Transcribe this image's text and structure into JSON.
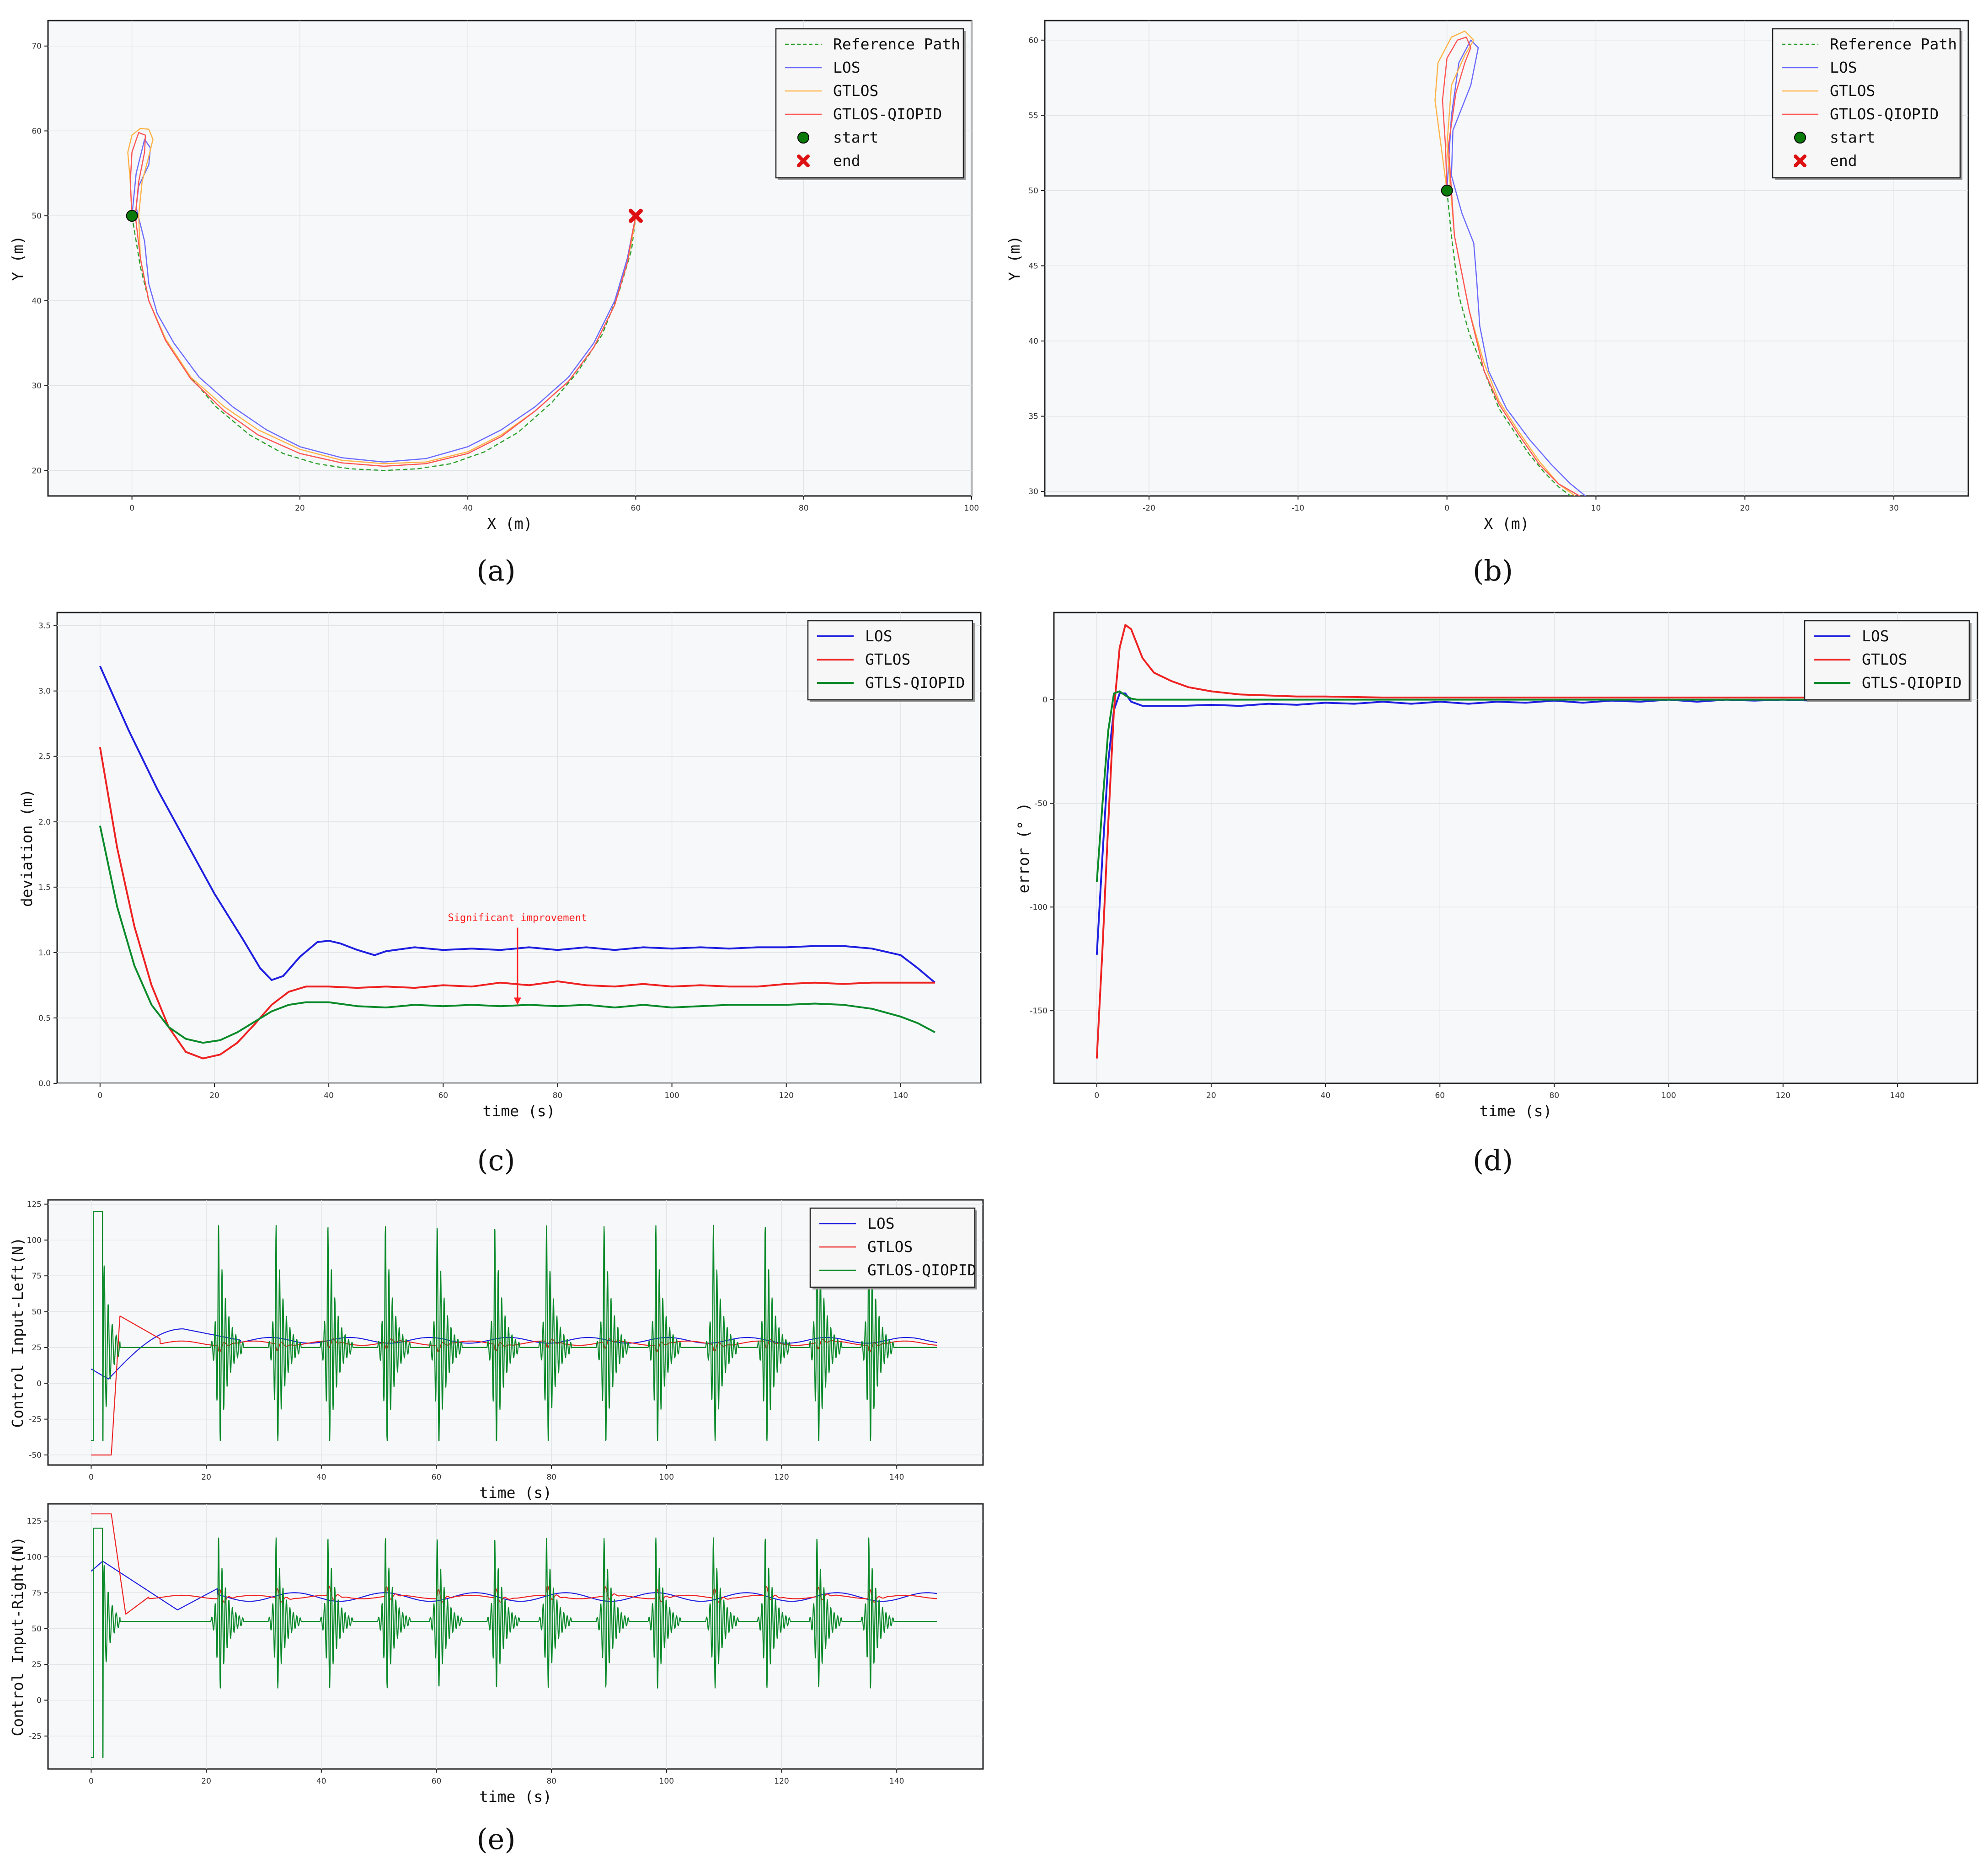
{
  "colors": {
    "reference": "#2ca02c",
    "los_a": "#6b6bff",
    "gtlos_a": "#ffb347",
    "qiopid_a": "#ff5555",
    "los": "#1f1fe0",
    "gtlos": "#ee2222",
    "qiopid": "#0a8a2a",
    "start": "#0a7a0a",
    "end": "#dd1111"
  },
  "chart_data": [
    {
      "id": "a",
      "caption": "(a)",
      "type": "line",
      "xlabel": "X (m)",
      "ylabel": "Y (m)",
      "xlim": [
        -10,
        100
      ],
      "ylim": [
        17,
        73
      ],
      "xticks": [
        0,
        20,
        40,
        60,
        80,
        100
      ],
      "yticks": [
        20,
        30,
        40,
        50,
        60,
        70
      ],
      "grid": true,
      "legend_position": "top-right",
      "legend": [
        "Reference Path",
        "LOS",
        "GTLOS",
        "GTLOS-QIOPID",
        "start",
        "end"
      ],
      "series": [
        {
          "name": "Reference Path",
          "style": "dashed",
          "x": [
            0,
            1,
            2,
            4,
            7,
            10,
            14,
            18,
            22,
            26,
            30,
            34,
            38,
            42,
            46,
            50,
            53,
            56,
            58,
            59.5,
            60
          ],
          "y": [
            50,
            44,
            40,
            35.5,
            31,
            27.5,
            24.2,
            22,
            20.8,
            20.2,
            20,
            20.2,
            20.8,
            22.2,
            24.5,
            28,
            31.5,
            36,
            41,
            46,
            50
          ]
        },
        {
          "name": "LOS",
          "x": [
            0,
            0.5,
            1.5,
            2.2,
            2,
            0.8,
            0.5,
            1.5,
            2,
            3,
            5,
            8,
            12,
            16,
            20,
            25,
            30,
            35,
            40,
            44,
            48,
            52,
            55,
            57.5,
            59,
            59.6,
            60
          ],
          "y": [
            50,
            55,
            59,
            58,
            56,
            53.5,
            51,
            47,
            42,
            38.5,
            35,
            31,
            27.5,
            24.8,
            22.8,
            21.5,
            21,
            21.4,
            22.8,
            24.8,
            27.5,
            31,
            35,
            40,
            45,
            48,
            50
          ]
        },
        {
          "name": "GTLOS",
          "x": [
            0,
            -0.2,
            -0.5,
            0,
            1,
            2,
            2.5,
            2,
            1.2,
            0.8,
            1,
            2,
            4,
            7,
            11,
            15,
            20,
            25,
            30,
            35,
            40,
            44,
            48,
            52,
            55,
            57.5,
            59,
            59.7,
            60
          ],
          "y": [
            50,
            54,
            57.5,
            59.5,
            60.3,
            60.2,
            59,
            57,
            54,
            50,
            45,
            40,
            35.5,
            31,
            27.5,
            24.8,
            22.5,
            21.2,
            20.8,
            21,
            22.2,
            24.2,
            27,
            30.5,
            34.5,
            39.5,
            44.5,
            48,
            50
          ]
        },
        {
          "name": "GTLOS-QIOPID",
          "x": [
            0,
            -0.2,
            0,
            0.8,
            1.6,
            1.5,
            0.8,
            0.4,
            1,
            2,
            4,
            7,
            11,
            15,
            20,
            25,
            30,
            35,
            40,
            44,
            48,
            52,
            55,
            57.5,
            59,
            59.6,
            60
          ],
          "y": [
            50,
            54,
            57.5,
            59.8,
            59.5,
            57.5,
            54,
            50,
            45,
            40,
            35.3,
            30.8,
            27,
            24.2,
            22,
            20.9,
            20.5,
            20.8,
            22,
            24,
            27,
            30.5,
            34.5,
            39.5,
            44.5,
            48,
            50
          ]
        },
        {
          "name": "start",
          "type": "scatter",
          "x": [
            0
          ],
          "y": [
            50
          ]
        },
        {
          "name": "end",
          "type": "scatter",
          "x": [
            60
          ],
          "y": [
            50
          ]
        }
      ]
    },
    {
      "id": "b",
      "caption": "(b)",
      "type": "line",
      "xlabel": "X (m)",
      "ylabel": "Y (m)",
      "xlim": [
        -27,
        35
      ],
      "ylim": [
        29.7,
        61.3
      ],
      "xticks": [
        -20,
        -10,
        0,
        10,
        20,
        30
      ],
      "yticks": [
        30,
        35,
        40,
        45,
        50,
        55,
        60
      ],
      "grid": true,
      "legend_position": "top-right",
      "legend": [
        "Reference Path",
        "LOS",
        "GTLOS",
        "GTLOS-QIOPID",
        "start",
        "end"
      ],
      "series": [
        {
          "name": "Reference Path",
          "style": "dashed",
          "x": [
            0,
            0.3,
            0.8,
            1.5,
            2.5,
            3.5,
            4.5,
            5.5,
            6.5,
            7.5,
            8.3
          ],
          "y": [
            50,
            47,
            43,
            40.5,
            38,
            35.5,
            34,
            32.5,
            31.3,
            30.3,
            29.7
          ]
        },
        {
          "name": "LOS",
          "x": [
            0,
            0.3,
            0.8,
            1.6,
            2.1,
            1.6,
            0.4,
            0.3,
            1,
            1.8,
            2,
            2.2,
            2.8,
            4,
            5.5,
            7,
            8.3,
            9.3
          ],
          "y": [
            50,
            55,
            58.5,
            60,
            59.5,
            57,
            54,
            51,
            48.5,
            46.5,
            44,
            41,
            38,
            35.5,
            33.5,
            31.8,
            30.5,
            29.7
          ]
        },
        {
          "name": "GTLOS",
          "x": [
            0,
            -0.4,
            -0.8,
            -0.6,
            0.3,
            1.2,
            1.8,
            1.2,
            0.3,
            0,
            0.5,
            1.5,
            2.5,
            3.5,
            4.8,
            6.2,
            7.5,
            8.6
          ],
          "y": [
            50,
            53,
            56,
            58.5,
            60.2,
            60.6,
            60,
            59,
            57,
            53,
            47,
            42,
            38.5,
            36,
            34,
            32,
            30.5,
            29.7
          ]
        },
        {
          "name": "GTLOS-QIOPID",
          "x": [
            0,
            -0.1,
            -0.3,
            0,
            0.7,
            1.3,
            1.6,
            1.2,
            0.6,
            0.1,
            0.5,
            1.5,
            2.5,
            3.5,
            4.8,
            6.2,
            7.5,
            8.9
          ],
          "y": [
            50,
            53,
            56,
            58.8,
            60,
            60.2,
            59.5,
            58.5,
            56.5,
            53,
            47,
            42,
            38,
            35.8,
            33.8,
            31.8,
            30.5,
            29.7
          ]
        },
        {
          "name": "start",
          "type": "scatter",
          "x": [
            0
          ],
          "y": [
            50
          ]
        }
      ]
    },
    {
      "id": "c",
      "caption": "(c)",
      "type": "line",
      "xlabel": "time (s)",
      "ylabel": "deviation (m)",
      "xlim": [
        -7.5,
        154
      ],
      "ylim": [
        0,
        3.6
      ],
      "xticks": [
        0,
        20,
        40,
        60,
        80,
        100,
        120,
        140
      ],
      "yticks": [
        0.0,
        0.5,
        1.0,
        1.5,
        2.0,
        2.5,
        3.0,
        3.5
      ],
      "ytick_format": 1,
      "grid": true,
      "legend_position": "top-right",
      "legend": [
        "LOS",
        "GTLOS",
        "GTLS-QIOPID"
      ],
      "annotation": {
        "text": "Significant improvement",
        "x": 73,
        "y_text": 1.24,
        "y_arrow_start": 1.19,
        "y_arrow_end": 0.6
      },
      "series": [
        {
          "name": "LOS",
          "x": [
            0,
            5,
            10,
            15,
            20,
            25,
            28,
            30,
            32,
            35,
            38,
            40,
            42,
            45,
            48,
            50,
            55,
            60,
            65,
            70,
            75,
            80,
            85,
            90,
            95,
            100,
            105,
            110,
            115,
            120,
            125,
            130,
            135,
            140,
            143,
            146
          ],
          "y": [
            3.19,
            2.7,
            2.25,
            1.85,
            1.45,
            1.1,
            0.88,
            0.79,
            0.82,
            0.97,
            1.08,
            1.09,
            1.07,
            1.02,
            0.98,
            1.01,
            1.04,
            1.02,
            1.03,
            1.02,
            1.04,
            1.02,
            1.04,
            1.02,
            1.04,
            1.03,
            1.04,
            1.03,
            1.04,
            1.04,
            1.05,
            1.05,
            1.03,
            0.98,
            0.88,
            0.77
          ]
        },
        {
          "name": "GTLOS",
          "x": [
            0,
            3,
            6,
            9,
            12,
            15,
            18,
            21,
            24,
            27,
            30,
            33,
            36,
            40,
            45,
            50,
            55,
            60,
            65,
            70,
            75,
            80,
            85,
            90,
            95,
            100,
            105,
            110,
            115,
            120,
            125,
            130,
            135,
            140,
            146
          ],
          "y": [
            2.57,
            1.8,
            1.2,
            0.75,
            0.43,
            0.24,
            0.19,
            0.22,
            0.31,
            0.45,
            0.6,
            0.7,
            0.74,
            0.74,
            0.73,
            0.74,
            0.73,
            0.75,
            0.74,
            0.77,
            0.75,
            0.78,
            0.75,
            0.74,
            0.76,
            0.74,
            0.75,
            0.74,
            0.74,
            0.76,
            0.77,
            0.76,
            0.77,
            0.77,
            0.77
          ]
        },
        {
          "name": "GTLS-QIOPID",
          "x": [
            0,
            3,
            6,
            9,
            12,
            15,
            18,
            21,
            24,
            27,
            30,
            33,
            36,
            40,
            45,
            50,
            55,
            60,
            65,
            70,
            75,
            80,
            85,
            90,
            95,
            100,
            105,
            110,
            115,
            120,
            125,
            130,
            135,
            140,
            143,
            146
          ],
          "y": [
            1.97,
            1.35,
            0.9,
            0.6,
            0.43,
            0.34,
            0.31,
            0.33,
            0.39,
            0.47,
            0.55,
            0.6,
            0.62,
            0.62,
            0.59,
            0.58,
            0.6,
            0.59,
            0.6,
            0.59,
            0.6,
            0.59,
            0.6,
            0.58,
            0.6,
            0.58,
            0.59,
            0.6,
            0.6,
            0.6,
            0.61,
            0.6,
            0.57,
            0.51,
            0.46,
            0.39
          ]
        }
      ]
    },
    {
      "id": "d",
      "caption": "(d)",
      "type": "line",
      "xlabel": "time (s)",
      "ylabel": "error (° )",
      "xlim": [
        -7.5,
        154
      ],
      "ylim": [
        -185,
        42
      ],
      "xticks": [
        0,
        20,
        40,
        60,
        80,
        100,
        120,
        140
      ],
      "yticks": [
        -150,
        -100,
        -50,
        0
      ],
      "grid": true,
      "legend_position": "top-right",
      "legend": [
        "LOS",
        "GTLOS",
        "GTLS-QIOPID"
      ],
      "series": [
        {
          "name": "LOS",
          "x": [
            0,
            1,
            2,
            3,
            4,
            5,
            6,
            8,
            10,
            15,
            20,
            25,
            30,
            35,
            40,
            45,
            50,
            55,
            60,
            65,
            70,
            75,
            80,
            85,
            90,
            95,
            100,
            105,
            110,
            115,
            120,
            125,
            130,
            135,
            140,
            146
          ],
          "y": [
            -123,
            -75,
            -30,
            -5,
            3,
            3,
            -1,
            -3,
            -3,
            -3,
            -2.5,
            -3,
            -2,
            -2.5,
            -1.5,
            -2,
            -1,
            -2,
            -1,
            -2,
            -1,
            -1.5,
            -0.5,
            -1.5,
            -0.5,
            -1,
            0,
            -1,
            0,
            -0.5,
            0,
            -0.5,
            0,
            -0.5,
            -0.5,
            -0.5
          ]
        },
        {
          "name": "GTLOS",
          "x": [
            0,
            1,
            2,
            3,
            4,
            5,
            6,
            7,
            8,
            10,
            13,
            16,
            20,
            25,
            30,
            35,
            40,
            50,
            60,
            70,
            80,
            90,
            100,
            110,
            120,
            130,
            140,
            146
          ],
          "y": [
            -173,
            -120,
            -60,
            -5,
            25,
            36,
            34,
            27,
            20,
            13,
            9,
            6,
            4,
            2.5,
            2,
            1.5,
            1.5,
            1,
            1,
            1,
            1,
            1,
            1,
            1,
            1,
            1,
            1,
            0.5
          ]
        },
        {
          "name": "GTLS-QIOPID",
          "x": [
            0,
            1,
            2,
            3,
            4,
            5,
            6,
            7,
            8,
            10,
            15,
            20,
            30,
            40,
            60,
            80,
            100,
            120,
            140,
            146
          ],
          "y": [
            -88,
            -50,
            -15,
            3,
            4,
            2,
            0.5,
            0,
            0,
            0,
            0,
            0,
            0,
            0,
            0,
            0,
            0,
            0,
            0,
            0
          ]
        }
      ]
    },
    {
      "id": "e1",
      "caption": "",
      "type": "line",
      "xlabel": "time (s)",
      "ylabel": "Control Input-Left(N)",
      "xlim": [
        -7.5,
        155
      ],
      "ylim": [
        -57,
        128
      ],
      "xticks": [
        0,
        20,
        40,
        60,
        80,
        100,
        120,
        140
      ],
      "yticks": [
        -50,
        -25,
        0,
        25,
        50,
        75,
        100,
        125
      ],
      "grid": true,
      "legend_position": "top-right",
      "legend": [
        "LOS",
        "GTLOS",
        "GTLOS-QIOPID"
      ],
      "series": [
        {
          "name": "LOS",
          "kind": "smooth",
          "base": 30,
          "start": 10,
          "dip": 3,
          "hump_x": 16,
          "hump_y": 38,
          "osc_amp": 2
        },
        {
          "name": "GTLOS",
          "kind": "spiky",
          "base": 28,
          "low": -50,
          "low_end": 3.5,
          "overshoot": 47,
          "spike_amp": 7
        },
        {
          "name": "GTLOS-QIOPID",
          "kind": "burst",
          "base": 25,
          "high": 120,
          "low": -40,
          "burst_times": [
            22,
            32,
            41,
            51,
            60,
            70,
            79,
            89,
            98,
            108,
            117,
            126,
            135
          ]
        }
      ]
    },
    {
      "id": "e2",
      "caption": "(e)",
      "type": "line",
      "xlabel": "time (s)",
      "ylabel": "Control Input-Right(N)",
      "xlim": [
        -7.5,
        155
      ],
      "ylim": [
        -48,
        137
      ],
      "xticks": [
        0,
        20,
        40,
        60,
        80,
        100,
        120,
        140
      ],
      "yticks": [
        -25,
        0,
        25,
        50,
        75,
        100,
        125
      ],
      "grid": true,
      "series": [
        {
          "name": "LOS",
          "kind": "smooth",
          "base": 72,
          "start": 90,
          "peak": 97,
          "dip": 63,
          "osc_amp": 3
        },
        {
          "name": "GTLOS",
          "kind": "spiky",
          "base": 72,
          "high": 130,
          "high_end": 3.5,
          "spike_amp": 10
        },
        {
          "name": "GTLOS-QIOPID",
          "kind": "burst",
          "base": 55,
          "high": 120,
          "low": -40,
          "burst_times": [
            22,
            32,
            41,
            51,
            60,
            70,
            79,
            89,
            98,
            108,
            117,
            126,
            135
          ]
        }
      ]
    }
  ]
}
